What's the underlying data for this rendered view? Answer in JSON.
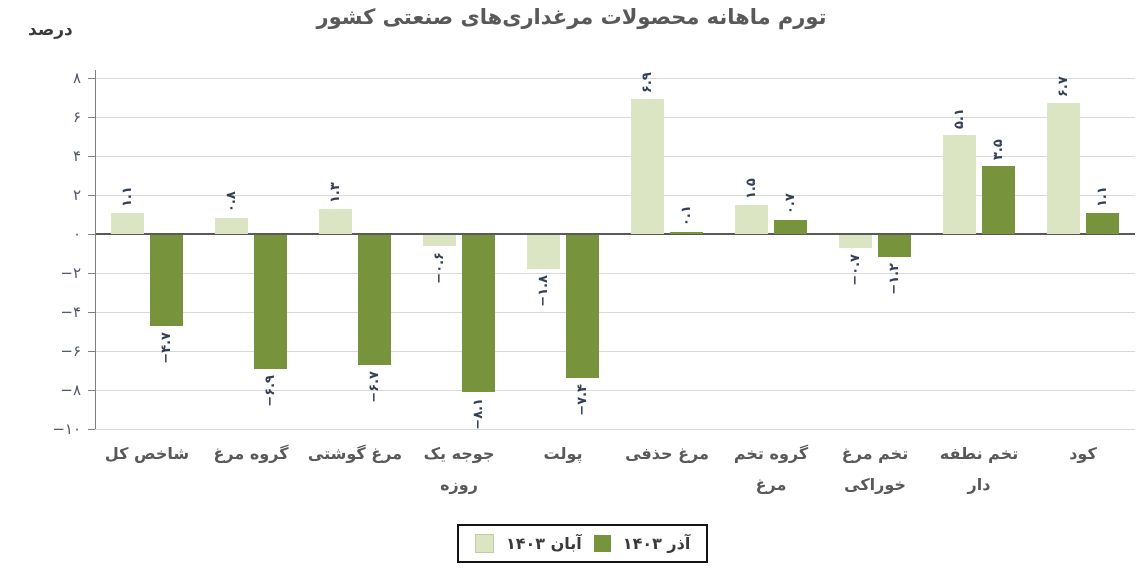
{
  "chart_data": {
    "type": "bar",
    "title": "تورم ماهانه محصولات مرغداری‌های صنعتی کشور",
    "ylabel": "درصد",
    "ylim": [
      -10,
      8
    ],
    "grid": true,
    "legend_position": "bottom",
    "yticks": [
      {
        "value": 8,
        "label": "۸"
      },
      {
        "value": 6,
        "label": "۶"
      },
      {
        "value": 4,
        "label": "۴"
      },
      {
        "value": 2,
        "label": "۲"
      },
      {
        "value": 0,
        "label": "۰"
      },
      {
        "value": -2,
        "label": "−۲"
      },
      {
        "value": -4,
        "label": "−۴"
      },
      {
        "value": -6,
        "label": "−۶"
      },
      {
        "value": -8,
        "label": "−۸"
      },
      {
        "value": -10,
        "label": "−۱۰"
      }
    ],
    "categories": [
      "شاخص کل",
      "گروه مرغ",
      "مرغ گوشتی",
      "جوجه یک روزه",
      "پولت",
      "مرغ حذفی",
      "گروه تخم مرغ",
      "تخم مرغ خوراکی",
      "تخم نطفه دار",
      "کود"
    ],
    "categories_display": [
      [
        "شاخص کل"
      ],
      [
        "گروه مرغ"
      ],
      [
        "مرغ گوشتی"
      ],
      [
        "جوجه یک",
        "روزه"
      ],
      [
        "پولت"
      ],
      [
        "مرغ حذفی"
      ],
      [
        "گروه تخم",
        "مرغ"
      ],
      [
        "تخم مرغ",
        "خوراکی"
      ],
      [
        "تخم نطفه دار"
      ],
      [
        "کود"
      ]
    ],
    "series": [
      {
        "name": "آبان ۱۴۰۳",
        "color": "#DCE5C3",
        "values": [
          1.1,
          0.8,
          1.3,
          -0.6,
          -1.8,
          6.9,
          1.5,
          -0.7,
          5.1,
          6.7
        ],
        "value_labels": [
          "۱.۱",
          "۰.۸",
          "۱.۳",
          "−۰.۶",
          "−۱.۸",
          "۶.۹",
          "۱.۵",
          "−۰.۷",
          "۵.۱",
          "۶.۷"
        ]
      },
      {
        "name": "آذر ۱۴۰۳",
        "color": "#77933C",
        "values": [
          -4.7,
          -6.9,
          -6.7,
          -8.1,
          -7.4,
          0.1,
          0.7,
          -1.2,
          3.5,
          1.1
        ],
        "value_labels": [
          "−۴.۷",
          "−۶.۹",
          "−۶.۷",
          "−۸.۱",
          "−۷.۴",
          "۰.۱",
          "۰.۷",
          "−۱.۲",
          "۳.۵",
          "۱.۱"
        ]
      }
    ],
    "legend": {
      "entries": [
        {
          "label": "آبان ۱۴۰۳",
          "color": "#DCE5C3"
        },
        {
          "label": "آذر ۱۴۰۳",
          "color": "#77933C"
        }
      ]
    }
  },
  "colors": {
    "gridline": "#D9D9D9",
    "zero_line": "#595959",
    "axis_line": "#808080",
    "title_text": "#595959",
    "category_text": "#595959",
    "tick_text": "#515a66",
    "value_label_text": "#333F55",
    "legend_border": "#141414"
  }
}
